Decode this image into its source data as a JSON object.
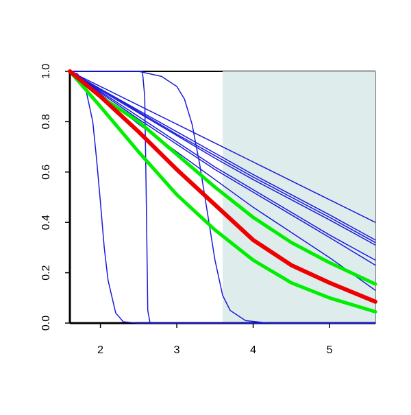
{
  "chart_data": {
    "type": "line",
    "xlim": [
      1.6,
      5.6
    ],
    "ylim": [
      0,
      1
    ],
    "xticks": [
      2,
      3,
      4,
      5
    ],
    "yticks": [
      {
        "value": 0,
        "label": "0.0"
      },
      0.2,
      0.4,
      0.6,
      0.8,
      {
        "value": 1,
        "label": "1.0"
      }
    ],
    "shade": {
      "xlim": [
        3.6,
        5.6
      ],
      "color": "#deecec"
    },
    "series": [
      {
        "color": "#1a1adb",
        "width": 1.5,
        "x": [
          1.6,
          2,
          2.5,
          3,
          3.5,
          4,
          4.5,
          5,
          5.6
        ],
        "values": [
          1,
          0.94,
          0.865,
          0.79,
          0.715,
          0.64,
          0.565,
          0.49,
          0.4
        ]
      },
      {
        "color": "#1a1adb",
        "width": 1.5,
        "x": [
          1.6,
          2,
          2.5,
          3,
          3.5,
          4,
          4.5,
          5,
          5.6
        ],
        "values": [
          1,
          0.93,
          0.845,
          0.76,
          0.675,
          0.59,
          0.51,
          0.43,
          0.33
        ]
      },
      {
        "color": "#1a1adb",
        "width": 1.5,
        "x": [
          1.6,
          2,
          2.5,
          3,
          3.5,
          4,
          4.5,
          5,
          5.6
        ],
        "values": [
          1,
          0.93,
          0.84,
          0.75,
          0.665,
          0.58,
          0.5,
          0.42,
          0.32
        ]
      },
      {
        "color": "#1a1adb",
        "width": 1.5,
        "x": [
          1.6,
          2,
          2.5,
          3,
          3.5,
          4,
          4.5,
          5,
          5.6
        ],
        "values": [
          1,
          0.925,
          0.835,
          0.745,
          0.655,
          0.57,
          0.49,
          0.41,
          0.31
        ]
      },
      {
        "color": "#1a1adb",
        "width": 1.5,
        "x": [
          1.6,
          2,
          2.5,
          3,
          3.5,
          4,
          4.5,
          5,
          5.6
        ],
        "values": [
          1,
          0.92,
          0.82,
          0.72,
          0.62,
          0.53,
          0.44,
          0.35,
          0.25
        ]
      },
      {
        "color": "#1a1adb",
        "width": 1.5,
        "x": [
          1.6,
          2,
          2.5,
          3,
          3.5,
          4,
          4.5,
          5,
          5.6
        ],
        "values": [
          1,
          0.915,
          0.81,
          0.71,
          0.61,
          0.52,
          0.43,
          0.34,
          0.23
        ]
      },
      {
        "color": "#1a1adb",
        "width": 1.5,
        "x": [
          1.6,
          2,
          2.5,
          3,
          3.5,
          4,
          4.5,
          5,
          5.6
        ],
        "values": [
          1,
          0.91,
          0.79,
          0.68,
          0.57,
          0.46,
          0.36,
          0.26,
          0.13
        ]
      },
      {
        "color": "#1a1adb",
        "width": 1.5,
        "x": [
          1.6,
          1.7,
          1.8,
          1.9,
          1.95,
          2.0,
          2.05,
          2.1,
          2.2,
          2.3,
          2.5,
          5.6
        ],
        "values": [
          1,
          0.99,
          0.94,
          0.8,
          0.65,
          0.48,
          0.3,
          0.17,
          0.04,
          0.005,
          0,
          0
        ]
      },
      {
        "color": "#1a1adb",
        "width": 1.5,
        "x": [
          1.6,
          2.55,
          2.58,
          2.6,
          2.62,
          2.65,
          5.6
        ],
        "values": [
          1,
          1,
          0.9,
          0.5,
          0.05,
          0,
          0
        ]
      },
      {
        "color": "#1a1adb",
        "width": 1.5,
        "x": [
          1.6,
          2.5,
          2.8,
          3.0,
          3.1,
          3.2,
          3.3,
          3.4,
          3.5,
          3.6,
          3.7,
          3.9,
          4.2,
          5.6
        ],
        "values": [
          1,
          1,
          0.98,
          0.94,
          0.89,
          0.79,
          0.63,
          0.44,
          0.25,
          0.11,
          0.05,
          0.01,
          0,
          0
        ]
      },
      {
        "color": "#00ee00",
        "width": 5,
        "x": [
          1.6,
          2,
          2.5,
          3,
          3.5,
          4,
          4.5,
          5,
          5.6
        ],
        "values": [
          1,
          0.9,
          0.8,
          0.67,
          0.54,
          0.42,
          0.32,
          0.24,
          0.155
        ]
      },
      {
        "color": "#00ee00",
        "width": 5,
        "x": [
          1.6,
          2,
          2.5,
          3,
          3.5,
          4,
          4.5,
          5,
          5.6
        ],
        "values": [
          1,
          0.86,
          0.68,
          0.51,
          0.37,
          0.25,
          0.16,
          0.1,
          0.045
        ]
      },
      {
        "color": "#ee0000",
        "width": 6,
        "x": [
          1.6,
          2,
          2.5,
          3,
          3.5,
          4,
          4.5,
          5,
          5.6
        ],
        "values": [
          1,
          0.9,
          0.76,
          0.61,
          0.47,
          0.33,
          0.23,
          0.16,
          0.085
        ]
      }
    ]
  }
}
